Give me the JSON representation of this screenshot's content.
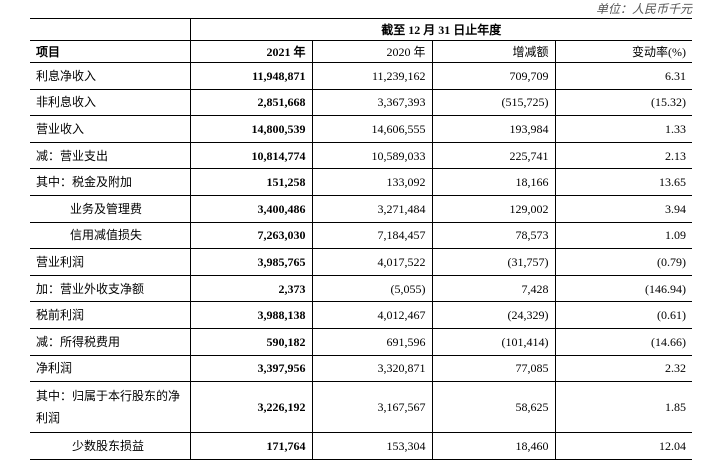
{
  "unit": "单位：人民币千元",
  "header": {
    "period": "截至 12 月 31 日止年度",
    "columns": [
      "项目",
      "2021 年",
      "2020 年",
      "增减额",
      "变动率(%)"
    ]
  },
  "rows": [
    [
      "利息净收入",
      "11,948,871",
      "11,239,162",
      "709,709",
      "6.31"
    ],
    [
      "非利息收入",
      "2,851,668",
      "3,367,393",
      "(515,725)",
      "(15.32)"
    ],
    [
      "营业收入",
      "14,800,539",
      "14,606,555",
      "193,984",
      "1.33"
    ],
    [
      "减：营业支出",
      "10,814,774",
      "10,589,033",
      "225,741",
      "2.13"
    ],
    [
      "其中：税金及附加",
      "151,258",
      "133,092",
      "18,166",
      "13.65"
    ],
    [
      "业务及管理费",
      "3,400,486",
      "3,271,484",
      "129,002",
      "3.94"
    ],
    [
      "信用减值损失",
      "7,263,030",
      "7,184,457",
      "78,573",
      "1.09"
    ],
    [
      "营业利润",
      "3,985,765",
      "4,017,522",
      "(31,757)",
      "(0.79)"
    ],
    [
      "加：营业外收支净额",
      "2,373",
      "(5,055)",
      "7,428",
      "(146.94)"
    ],
    [
      "税前利润",
      "3,988,138",
      "4,012,467",
      "(24,329)",
      "(0.61)"
    ],
    [
      "减：所得税费用",
      "590,182",
      "691,596",
      "(101,414)",
      "(14.66)"
    ],
    [
      "净利润",
      "3,397,956",
      "3,320,871",
      "77,085",
      "2.32"
    ],
    [
      "其中：归属于本行股东的净利润",
      "3,226,192",
      "3,167,567",
      "58,625",
      "1.85"
    ],
    [
      "少数股东损益",
      "171,764",
      "153,304",
      "18,460",
      "12.04"
    ]
  ]
}
